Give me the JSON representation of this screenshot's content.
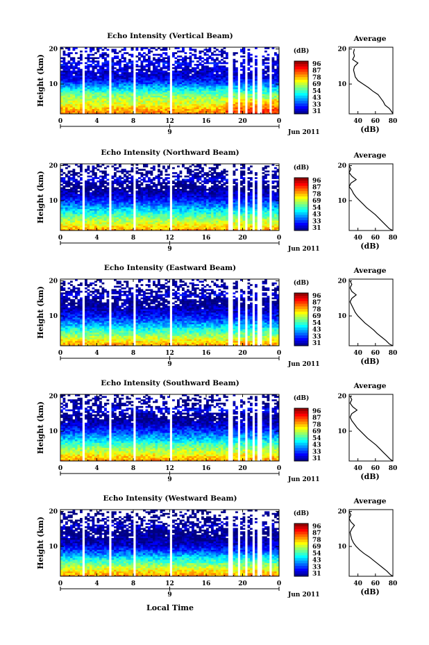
{
  "chart_data": {
    "type": "heatmap",
    "date_label": "Jun 2011",
    "date_tick": "9",
    "x_label": "Local Time",
    "colorbar_unit": "(dB)",
    "colorbar_ticks": [
      "96",
      "87",
      "78",
      "69",
      "54",
      "43",
      "33",
      "31"
    ],
    "colorbar_range": [
      31,
      96
    ],
    "main_x_ticks": [
      "0",
      "4",
      "8",
      "12",
      "16",
      "20",
      "0"
    ],
    "main_x_range": [
      0,
      24
    ],
    "main_y_ticks": [
      "20",
      "10"
    ],
    "main_y_label": "Height (km)",
    "main_y_range": [
      1.5,
      20.5
    ],
    "profile_title": "Average",
    "profile_y_ticks": [
      "20",
      "10"
    ],
    "profile_x_ticks": [
      "40",
      "60",
      "80"
    ],
    "profile_x_label": "(dB)",
    "profile_x_range": [
      30,
      80
    ],
    "data_gaps_hours": [
      [
        2.3,
        2.6
      ],
      [
        5.3,
        5.6
      ],
      [
        7.9,
        8.2
      ],
      [
        11.9,
        12.2
      ],
      [
        18.5,
        18.9
      ],
      [
        19.5,
        19.7
      ],
      [
        20.2,
        20.5
      ],
      [
        21.0,
        21.2
      ],
      [
        21.7,
        22.0
      ],
      [
        23.0,
        23.3
      ]
    ],
    "panels": [
      {
        "title": "Echo Intensity (Vertical Beam)",
        "profile": [
          [
            1.5,
            80
          ],
          [
            2,
            79
          ],
          [
            3,
            76
          ],
          [
            4,
            71
          ],
          [
            5,
            69
          ],
          [
            6,
            66
          ],
          [
            7,
            63
          ],
          [
            8,
            57
          ],
          [
            9,
            52
          ],
          [
            10,
            46
          ],
          [
            11,
            40
          ],
          [
            12,
            37
          ],
          [
            13,
            36
          ],
          [
            14,
            35
          ],
          [
            15,
            36
          ],
          [
            16,
            40
          ],
          [
            17,
            34
          ],
          [
            18,
            36
          ],
          [
            19,
            35
          ],
          [
            20,
            36
          ]
        ]
      },
      {
        "title": "Echo Intensity (Northward Beam)",
        "profile": [
          [
            1.5,
            80
          ],
          [
            2,
            76
          ],
          [
            3,
            72
          ],
          [
            4,
            68
          ],
          [
            5,
            64
          ],
          [
            6,
            60
          ],
          [
            7,
            55
          ],
          [
            8,
            50
          ],
          [
            9,
            46
          ],
          [
            10,
            42
          ],
          [
            11,
            38
          ],
          [
            12,
            35
          ],
          [
            13,
            33
          ],
          [
            14,
            30
          ],
          [
            15,
            32
          ],
          [
            16,
            38
          ],
          [
            17,
            33
          ],
          [
            18,
            30
          ],
          [
            19,
            32
          ],
          [
            20,
            30
          ]
        ]
      },
      {
        "title": "Echo Intensity (Eastward Beam)",
        "profile": [
          [
            1.5,
            80
          ],
          [
            2,
            76
          ],
          [
            3,
            72
          ],
          [
            4,
            67
          ],
          [
            5,
            62
          ],
          [
            6,
            58
          ],
          [
            7,
            53
          ],
          [
            8,
            48
          ],
          [
            9,
            44
          ],
          [
            10,
            40
          ],
          [
            11,
            37
          ],
          [
            12,
            35
          ],
          [
            13,
            33
          ],
          [
            14,
            31
          ],
          [
            15,
            33
          ],
          [
            16,
            38
          ],
          [
            17,
            33
          ],
          [
            18,
            31
          ],
          [
            19,
            33
          ],
          [
            20,
            31
          ]
        ]
      },
      {
        "title": "Echo Intensity (Southward Beam)",
        "profile": [
          [
            1.5,
            80
          ],
          [
            2,
            77
          ],
          [
            3,
            73
          ],
          [
            4,
            69
          ],
          [
            5,
            65
          ],
          [
            6,
            61
          ],
          [
            7,
            56
          ],
          [
            8,
            51
          ],
          [
            9,
            47
          ],
          [
            10,
            43
          ],
          [
            11,
            39
          ],
          [
            12,
            36
          ],
          [
            13,
            33
          ],
          [
            14,
            31
          ],
          [
            15,
            33
          ],
          [
            16,
            39
          ],
          [
            17,
            34
          ],
          [
            18,
            31
          ],
          [
            19,
            33
          ],
          [
            20,
            31
          ]
        ]
      },
      {
        "title": "Echo Intensity (Westward Beam)",
        "profile": [
          [
            1.5,
            80
          ],
          [
            2,
            77
          ],
          [
            3,
            73
          ],
          [
            4,
            68
          ],
          [
            5,
            63
          ],
          [
            6,
            58
          ],
          [
            7,
            53
          ],
          [
            8,
            47
          ],
          [
            9,
            42
          ],
          [
            10,
            38
          ],
          [
            11,
            35
          ],
          [
            12,
            33
          ],
          [
            13,
            32
          ],
          [
            14,
            31
          ],
          [
            15,
            33
          ],
          [
            16,
            36
          ],
          [
            17,
            32
          ],
          [
            18,
            30
          ],
          [
            19,
            32
          ],
          [
            20,
            30
          ]
        ]
      }
    ]
  }
}
